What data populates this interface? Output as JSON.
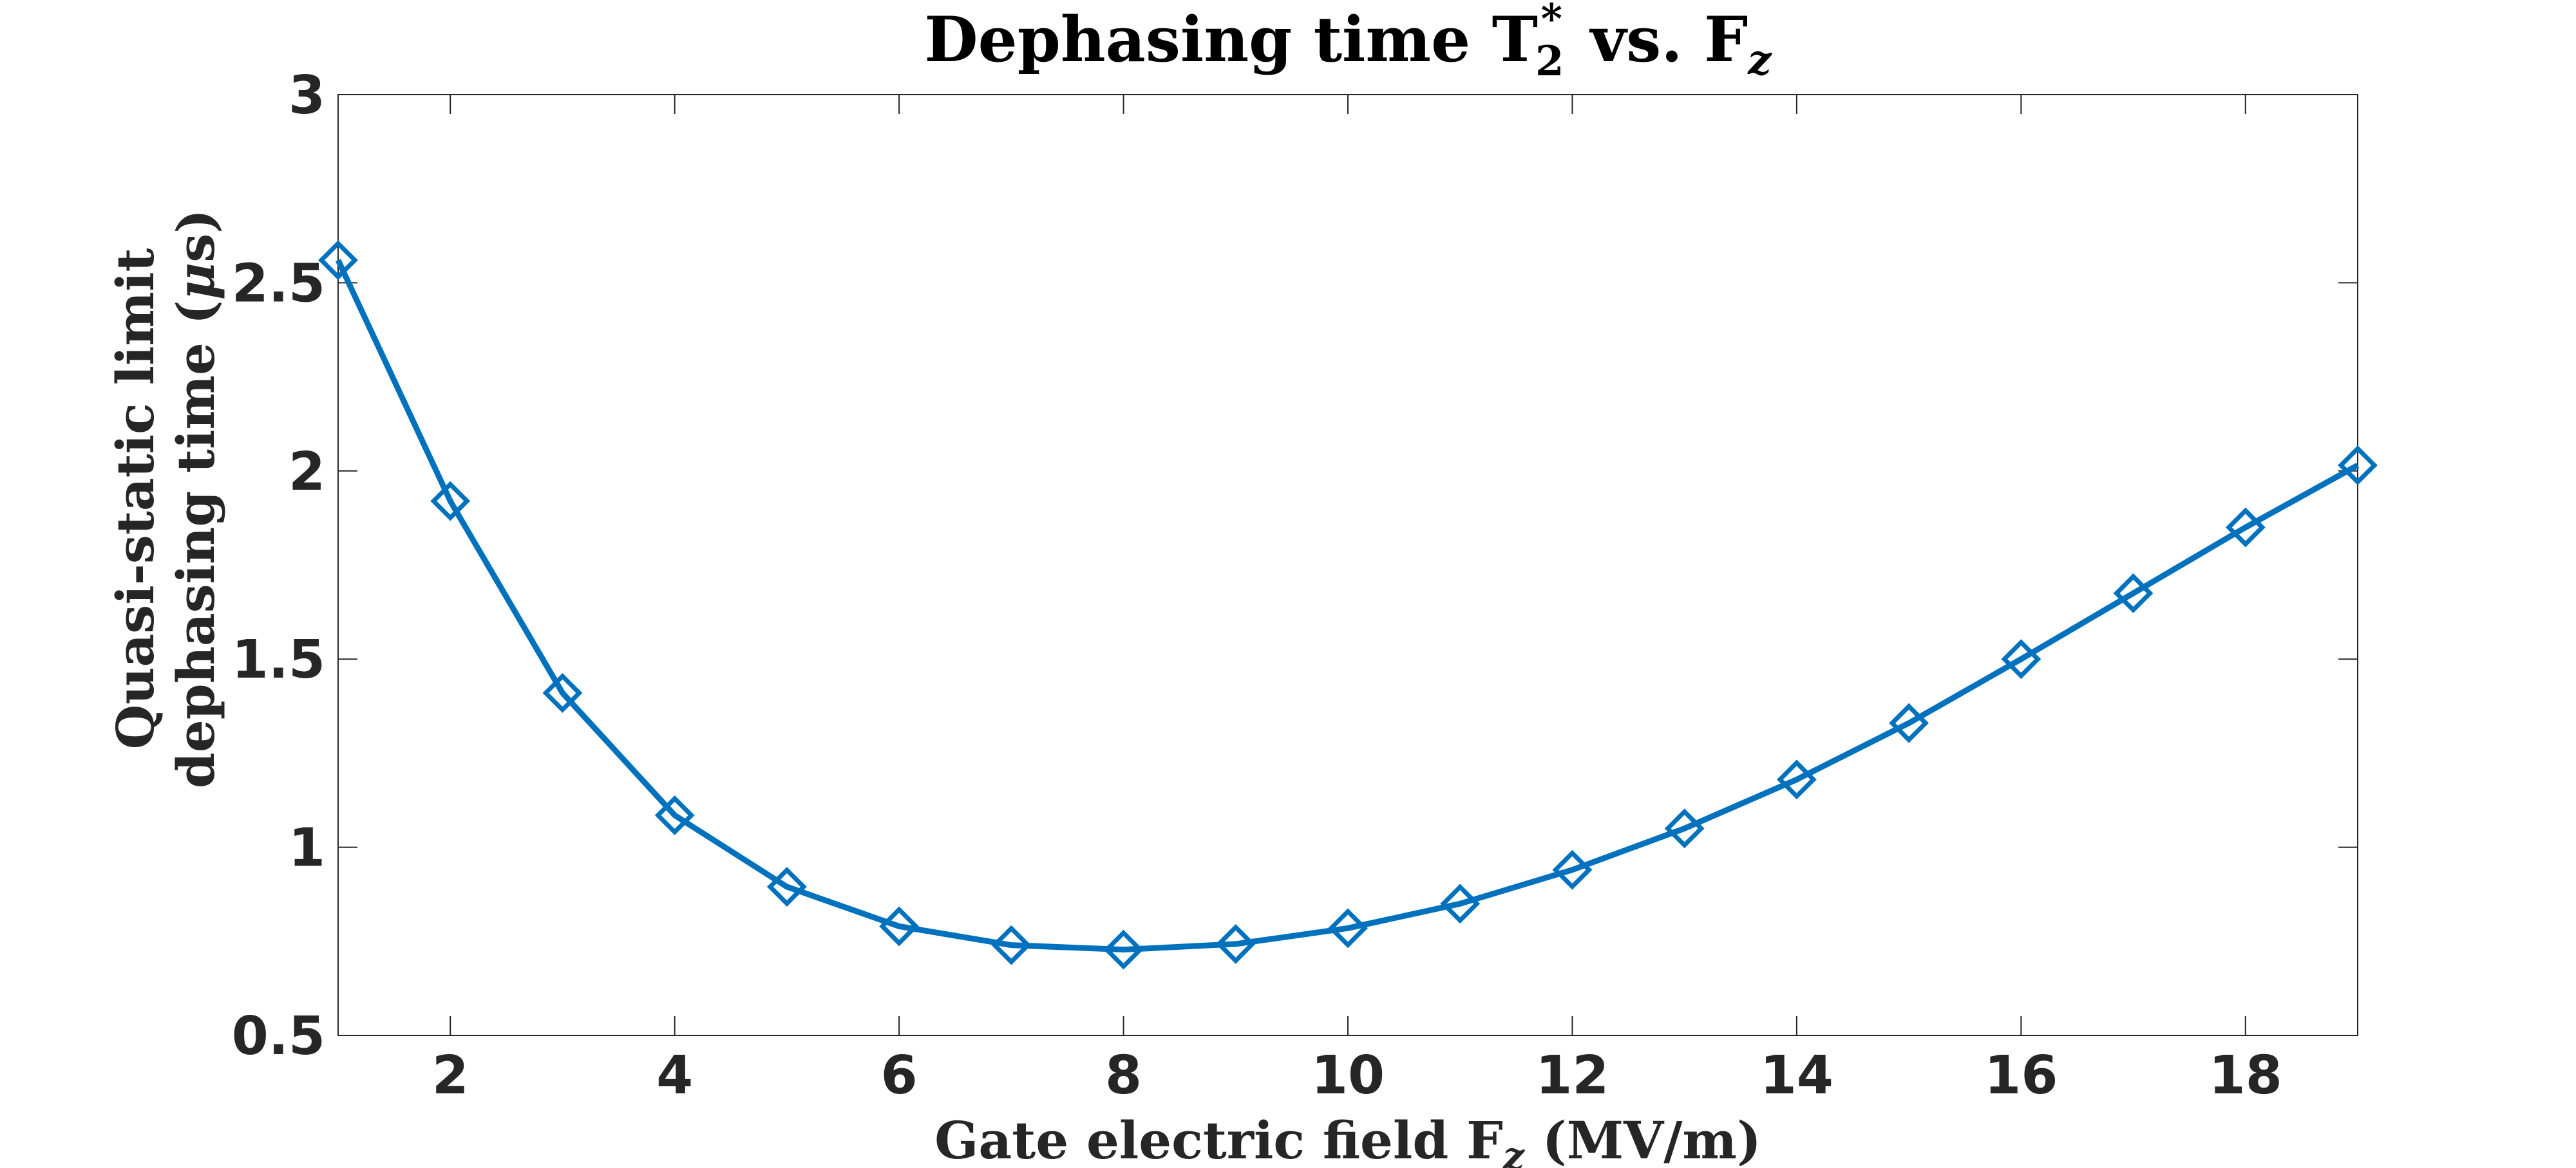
{
  "chart_data": {
    "type": "line",
    "title": {
      "prefix": "Dephasing time T",
      "superscript": "*",
      "subscript": "2",
      "middle": " vs.  F",
      "suffix_subscript": "z"
    },
    "xlabel": {
      "prefix": "Gate electric field F",
      "subscript": "z",
      "suffix": " (MV/m)"
    },
    "ylabel": {
      "line1": "Quasi-static limit",
      "line2_prefix": "dephasing time (",
      "line2_mu": "μ",
      "line2_suffix": "s)"
    },
    "xlim": [
      1,
      19
    ],
    "ylim": [
      0.5,
      3
    ],
    "xticks": [
      2,
      4,
      6,
      8,
      10,
      12,
      14,
      16,
      18
    ],
    "xtick_labels": [
      "2",
      "4",
      "6",
      "8",
      "10",
      "12",
      "14",
      "16",
      "18"
    ],
    "yticks": [
      0.5,
      1,
      1.5,
      2,
      2.5,
      3
    ],
    "ytick_labels": [
      "0.5",
      "1",
      "1.5",
      "2",
      "2.5",
      "3"
    ],
    "grid": false,
    "series": [
      {
        "name": "T2*",
        "color": "#0072BD",
        "marker": "diamond",
        "x": [
          1,
          2,
          3,
          4,
          5,
          6,
          7,
          8,
          9,
          10,
          11,
          12,
          13,
          14,
          15,
          16,
          17,
          18,
          19
        ],
        "values": [
          2.56,
          1.92,
          1.41,
          1.085,
          0.895,
          0.79,
          0.74,
          0.728,
          0.743,
          0.785,
          0.85,
          0.94,
          1.05,
          1.18,
          1.33,
          1.5,
          1.675,
          1.85,
          2.015
        ]
      }
    ]
  }
}
